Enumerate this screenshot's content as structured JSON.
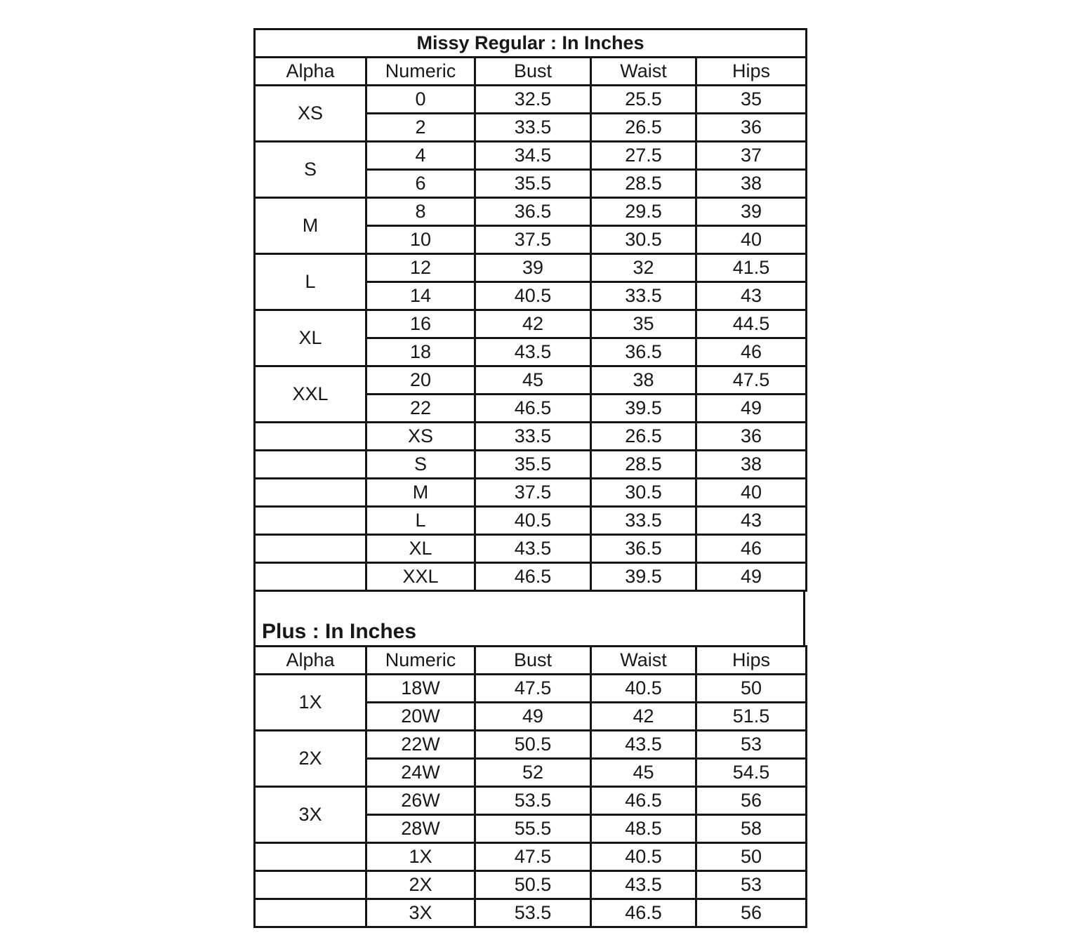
{
  "page": {
    "background_color": "#ffffff",
    "border_color": "#161616",
    "text_color": "#181818"
  },
  "chart_data": {
    "type": "table",
    "tables": [
      {
        "title": "Missy Regular : In Inches",
        "columns": [
          "Alpha",
          "Numeric",
          "Bust",
          "Waist",
          "Hips"
        ],
        "column_keys": [
          "numeric",
          "bust",
          "waist",
          "hips"
        ],
        "groups": [
          {
            "alpha": "XS",
            "rows": [
              [
                "0",
                "32.5",
                "25.5",
                "35"
              ],
              [
                "2",
                "33.5",
                "26.5",
                "36"
              ]
            ]
          },
          {
            "alpha": "S",
            "rows": [
              [
                "4",
                "34.5",
                "27.5",
                "37"
              ],
              [
                "6",
                "35.5",
                "28.5",
                "38"
              ]
            ]
          },
          {
            "alpha": "M",
            "rows": [
              [
                "8",
                "36.5",
                "29.5",
                "39"
              ],
              [
                "10",
                "37.5",
                "30.5",
                "40"
              ]
            ]
          },
          {
            "alpha": "L",
            "rows": [
              [
                "12",
                "39",
                "32",
                "41.5"
              ],
              [
                "14",
                "40.5",
                "33.5",
                "43"
              ]
            ]
          },
          {
            "alpha": "XL",
            "rows": [
              [
                "16",
                "42",
                "35",
                "44.5"
              ],
              [
                "18",
                "43.5",
                "36.5",
                "46"
              ]
            ]
          },
          {
            "alpha": "XXL",
            "rows": [
              [
                "20",
                "45",
                "38",
                "47.5"
              ],
              [
                "22",
                "46.5",
                "39.5",
                "49"
              ]
            ]
          }
        ],
        "singles": [
          {
            "alpha": "",
            "cells": [
              "XS",
              "33.5",
              "26.5",
              "36"
            ]
          },
          {
            "alpha": "",
            "cells": [
              "S",
              "35.5",
              "28.5",
              "38"
            ]
          },
          {
            "alpha": "",
            "cells": [
              "M",
              "37.5",
              "30.5",
              "40"
            ]
          },
          {
            "alpha": "",
            "cells": [
              "L",
              "40.5",
              "33.5",
              "43"
            ]
          },
          {
            "alpha": "",
            "cells": [
              "XL",
              "43.5",
              "36.5",
              "46"
            ]
          },
          {
            "alpha": "",
            "cells": [
              "XXL",
              "46.5",
              "39.5",
              "49"
            ]
          }
        ]
      },
      {
        "title": "Plus : In Inches",
        "columns": [
          "Alpha",
          "Numeric",
          "Bust",
          "Waist",
          "Hips"
        ],
        "column_keys": [
          "numeric",
          "bust",
          "waist",
          "hips"
        ],
        "groups": [
          {
            "alpha": "1X",
            "rows": [
              [
                "18W",
                "47.5",
                "40.5",
                "50"
              ],
              [
                "20W",
                "49",
                "42",
                "51.5"
              ]
            ]
          },
          {
            "alpha": "2X",
            "rows": [
              [
                "22W",
                "50.5",
                "43.5",
                "53"
              ],
              [
                "24W",
                "52",
                "45",
                "54.5"
              ]
            ]
          },
          {
            "alpha": "3X",
            "rows": [
              [
                "26W",
                "53.5",
                "46.5",
                "56"
              ],
              [
                "28W",
                "55.5",
                "48.5",
                "58"
              ]
            ]
          }
        ],
        "singles": [
          {
            "alpha": "",
            "cells": [
              "1X",
              "47.5",
              "40.5",
              "50"
            ]
          },
          {
            "alpha": "",
            "cells": [
              "2X",
              "50.5",
              "43.5",
              "53"
            ]
          },
          {
            "alpha": "",
            "cells": [
              "3X",
              "53.5",
              "46.5",
              "56"
            ]
          }
        ]
      }
    ]
  }
}
